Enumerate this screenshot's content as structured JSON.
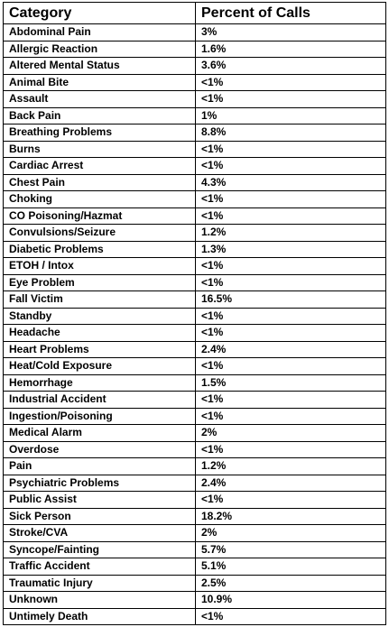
{
  "table": {
    "header": [
      "Category",
      "Percent of Calls"
    ],
    "rows": [
      [
        "Abdominal Pain",
        "3%"
      ],
      [
        "Allergic Reaction",
        "1.6%"
      ],
      [
        "Altered Mental Status",
        "3.6%"
      ],
      [
        "Animal Bite",
        "<1%"
      ],
      [
        "Assault",
        "<1%"
      ],
      [
        "Back Pain",
        "1%"
      ],
      [
        "Breathing Problems",
        "8.8%"
      ],
      [
        "Burns",
        "<1%"
      ],
      [
        "Cardiac Arrest",
        "<1%"
      ],
      [
        "Chest Pain",
        "4.3%"
      ],
      [
        "Choking",
        "<1%"
      ],
      [
        "CO Poisoning/Hazmat",
        "<1%"
      ],
      [
        "Convulsions/Seizure",
        "1.2%"
      ],
      [
        "Diabetic Problems",
        "1.3%"
      ],
      [
        "ETOH / Intox",
        "<1%"
      ],
      [
        "Eye Problem",
        "<1%"
      ],
      [
        "Fall Victim",
        "16.5%"
      ],
      [
        "Standby",
        "<1%"
      ],
      [
        "Headache",
        "<1%"
      ],
      [
        "Heart Problems",
        "2.4%"
      ],
      [
        "Heat/Cold Exposure",
        "<1%"
      ],
      [
        "Hemorrhage",
        "1.5%"
      ],
      [
        "Industrial Accident",
        "<1%"
      ],
      [
        "Ingestion/Poisoning",
        "<1%"
      ],
      [
        "Medical Alarm",
        "2%"
      ],
      [
        "Overdose",
        "<1%"
      ],
      [
        "Pain",
        "1.2%"
      ],
      [
        "Psychiatric Problems",
        "2.4%"
      ],
      [
        "Public Assist",
        "<1%"
      ],
      [
        "Sick Person",
        "18.2%"
      ],
      [
        "Stroke/CVA",
        "2%"
      ],
      [
        "Syncope/Fainting",
        "5.7%"
      ],
      [
        "Traffic Accident",
        "5.1%"
      ],
      [
        "Traumatic Injury",
        "2.5%"
      ],
      [
        "Unknown",
        "10.9%"
      ],
      [
        "Untimely Death",
        "<1%"
      ]
    ]
  }
}
